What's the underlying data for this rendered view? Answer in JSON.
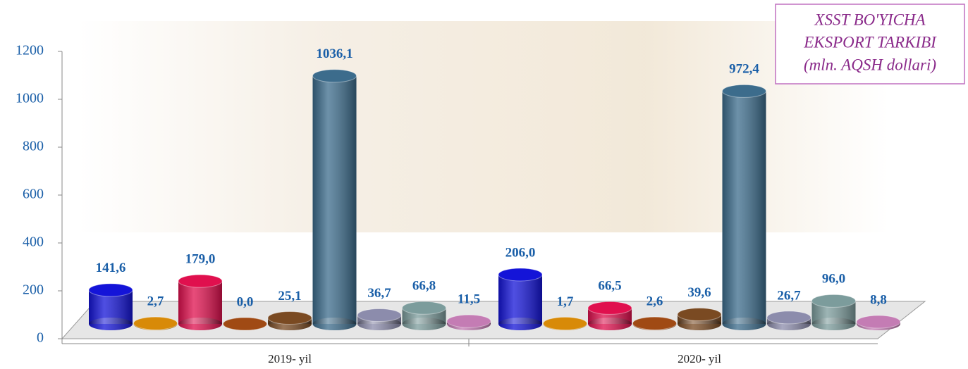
{
  "chart_data": {
    "type": "bar",
    "title": [
      "XSST BO'YICHA",
      "EKSPORT TARKIBI",
      "(mln. AQSH dollari)"
    ],
    "categories": [
      "2019- yil",
      "2020- yil"
    ],
    "series": [
      {
        "color": "#1414d8",
        "values": [
          141.6,
          206.0
        ],
        "value_labels": [
          "141,6",
          "206,0"
        ]
      },
      {
        "color": "#d88a08",
        "values": [
          2.7,
          1.7
        ],
        "value_labels": [
          "2,7",
          "1,7"
        ]
      },
      {
        "color": "#e0104e",
        "values": [
          179.0,
          66.5
        ],
        "value_labels": [
          "179,0",
          "66,5"
        ]
      },
      {
        "color": "#a04a14",
        "values": [
          0.0,
          2.6
        ],
        "value_labels": [
          "0,0",
          "2,6"
        ]
      },
      {
        "color": "#7a4a22",
        "values": [
          25.1,
          39.6
        ],
        "value_labels": [
          "25,1",
          "39,6"
        ]
      },
      {
        "color": "#3c6c8c",
        "values": [
          1036.1,
          972.4
        ],
        "value_labels": [
          "1036,1",
          "972,4"
        ]
      },
      {
        "color": "#8c8cac",
        "values": [
          36.7,
          26.7
        ],
        "value_labels": [
          "36,7",
          "26,7"
        ]
      },
      {
        "color": "#7c9c9c",
        "values": [
          66.8,
          96.0
        ],
        "value_labels": [
          "66,8",
          "96,0"
        ]
      },
      {
        "color": "#c47cb4",
        "values": [
          11.5,
          8.8
        ],
        "value_labels": [
          "11,5",
          "8,8"
        ]
      }
    ],
    "ylim": [
      0,
      1200
    ],
    "yticks": [
      0,
      200,
      400,
      600,
      800,
      1000,
      1200
    ]
  }
}
